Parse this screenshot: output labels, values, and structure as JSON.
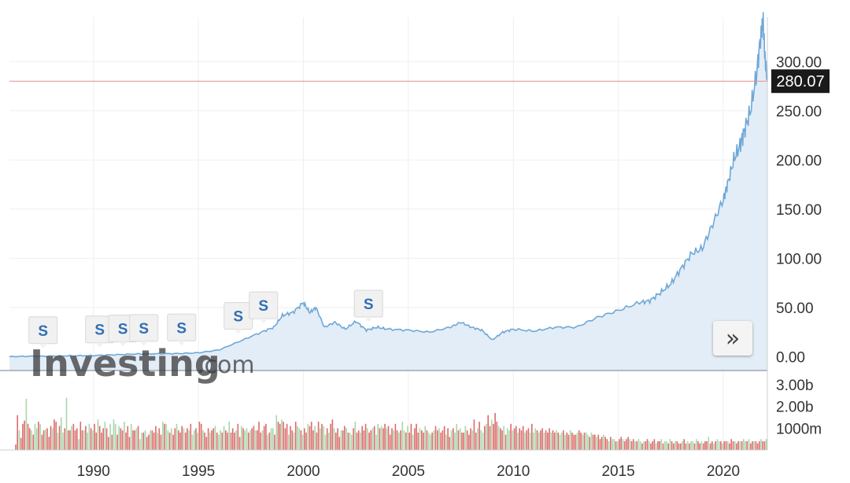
{
  "chart_data": {
    "type": "area",
    "x_ticks": [
      "1990",
      "1995",
      "2000",
      "2005",
      "2010",
      "2015",
      "2020"
    ],
    "y_ticks": [
      "0.00",
      "50.00",
      "100.00",
      "150.00",
      "200.00",
      "250.00",
      "300.00"
    ],
    "volume_ticks": [
      "1000m",
      "2.00b",
      "3.00b"
    ],
    "ylim": [
      -14,
      345
    ],
    "xlim": [
      1986.0,
      2022.1
    ],
    "current_price": 280.07,
    "current_price_label": "280.07",
    "series": [
      {
        "x": [
          1986.0,
          1987.0,
          1988.0,
          1989.0,
          1990.0,
          1991.0,
          1992.0,
          1993.0,
          1994.0,
          1995.0,
          1996.0,
          1997.0,
          1998.0,
          1998.6,
          1999.0,
          1999.5,
          2000.0,
          2000.3,
          2000.6,
          2001.0,
          2001.5,
          2002.0,
          2002.5,
          2003.0,
          2003.5,
          2004.0,
          2005.0,
          2006.0,
          2007.0,
          2007.5,
          2008.0,
          2008.5,
          2009.0,
          2009.5,
          2010.0,
          2011.0,
          2012.0,
          2013.0,
          2014.0,
          2015.0,
          2016.0,
          2016.5,
          2017.0,
          2017.5,
          2018.0,
          2018.5,
          2019.0,
          2019.5,
          2020.0,
          2020.2,
          2020.5,
          2020.8,
          2021.0,
          2021.3,
          2021.6,
          2021.8,
          2021.9,
          2022.0,
          2022.1
        ],
        "values": [
          0.06,
          0.5,
          0.6,
          1.0,
          1.2,
          2.0,
          2.8,
          3.0,
          3.2,
          4.0,
          7.0,
          16.0,
          25.0,
          30.0,
          42.0,
          45.0,
          55.0,
          45.0,
          50.0,
          30.0,
          35.0,
          28.0,
          36.0,
          27.0,
          30.0,
          28.0,
          27.0,
          25.0,
          30.0,
          35.0,
          30.0,
          27.0,
          17.0,
          25.0,
          28.0,
          26.0,
          30.0,
          30.0,
          40.0,
          47.0,
          55.0,
          57.0,
          65.0,
          74.0,
          90.0,
          105.0,
          110.0,
          135.0,
          160.0,
          175.0,
          200.0,
          215.0,
          230.0,
          250.0,
          290.0,
          330.0,
          340.0,
          300.0,
          280.07
        ]
      }
    ],
    "volume": {
      "bars_per_year": 12,
      "values_b": [
        0.25,
        1.6,
        0.9,
        0.55,
        1.2,
        1.35,
        2.35,
        1.2,
        1.0,
        0.9,
        0.7,
        1.2,
        1.0,
        1.3,
        1.2,
        0.7,
        0.9,
        0.95,
        1.0,
        0.6,
        1.1,
        1.0,
        1.4,
        1.3,
        0.8,
        1.1,
        1.5,
        0.8,
        1.0,
        2.4,
        0.9,
        0.9,
        1.1,
        1.2,
        0.9,
        1.0,
        0.5,
        1.3,
        0.9,
        0.9,
        1.1,
        0.8,
        1.2,
        1.0,
        0.9,
        1.2,
        0.8,
        1.4,
        1.1,
        0.8,
        1.0,
        1.3,
        1.0,
        0.6,
        1.2,
        0.7,
        1.4,
        1.2,
        0.7,
        1.1,
        1.0,
        0.9,
        1.3,
        0.8,
        1.1,
        0.6,
        1.2,
        0.9,
        0.9,
        1.0,
        1.1,
        0.5,
        0.8,
        0.8,
        0.9,
        0.6,
        0.7,
        0.9,
        0.9,
        0.8,
        1.1,
        0.8,
        1.0,
        0.7,
        1.3,
        1.2,
        1.2,
        0.9,
        0.8,
        1.0,
        0.7,
        1.0,
        1.2,
        0.9,
        0.8,
        1.1,
        1.0,
        0.8,
        1.0,
        0.9,
        1.2,
        0.7,
        0.9,
        1.0,
        0.8,
        1.3,
        1.2,
        0.9,
        0.8,
        0.6,
        1.0,
        0.8,
        0.9,
        1.0,
        1.1,
        0.8,
        0.7,
        0.9,
        0.8,
        1.1,
        0.9,
        0.8,
        1.3,
        0.8,
        1.0,
        0.8,
        0.9,
        1.2,
        0.6,
        1.1,
        1.0,
        0.9,
        1.0,
        0.8,
        0.9,
        1.0,
        1.1,
        0.9,
        0.9,
        1.3,
        0.8,
        0.9,
        1.1,
        1.2,
        0.7,
        0.8,
        1.0,
        1.0,
        0.7,
        1.6,
        1.3,
        1.2,
        1.4,
        1.3,
        1.0,
        1.2,
        0.7,
        1.1,
        0.9,
        0.8,
        1.3,
        1.1,
        1.0,
        0.9,
        0.7,
        1.0,
        0.8,
        1.2,
        1.1,
        1.3,
        0.9,
        1.1,
        0.8,
        1.3,
        1.0,
        1.2,
        1.1,
        0.7,
        1.0,
        0.8,
        1.2,
        1.4,
        1.0,
        0.8,
        1.0,
        0.6,
        0.9,
        0.9,
        1.1,
        1.0,
        0.8,
        0.8,
        0.7,
        1.0,
        1.3,
        0.8,
        0.9,
        0.8,
        1.1,
        0.9,
        1.2,
        1.0,
        0.8,
        0.9,
        1.0,
        1.1,
        0.7,
        1.2,
        1.0,
        1.1,
        1.0,
        1.2,
        1.0,
        1.1,
        0.7,
        1.0,
        0.9,
        1.2,
        0.9,
        0.8,
        0.9,
        1.3,
        0.9,
        0.8,
        1.1,
        0.8,
        1.2,
        0.7,
        1.0,
        1.2,
        0.8,
        1.0,
        0.9,
        0.8,
        1.1,
        0.9,
        0.8,
        0.7,
        0.8,
        0.9,
        1.1,
        0.9,
        1.0,
        0.8,
        0.9,
        1.1,
        0.7,
        1.0,
        0.6,
        0.9,
        1.0,
        0.8,
        1.2,
        0.9,
        1.0,
        0.8,
        0.8,
        1.1,
        0.9,
        0.7,
        1.0,
        0.9,
        1.4,
        0.8,
        1.0,
        1.3,
        0.9,
        0.8,
        1.1,
        1.2,
        1.6,
        1.1,
        1.4,
        1.2,
        1.7,
        1.3,
        1.1,
        1.0,
        0.9,
        1.1,
        0.7,
        1.0,
        0.9,
        1.2,
        0.9,
        1.0,
        1.1,
        0.8,
        1.0,
        0.9,
        1.1,
        0.8,
        0.9,
        1.0,
        0.8,
        1.2,
        0.8,
        1.0,
        0.9,
        0.8,
        0.9,
        1.0,
        0.8,
        0.9,
        0.8,
        1.0,
        0.8,
        0.9,
        0.8,
        0.9,
        0.8,
        0.7,
        0.8,
        0.9,
        0.7,
        0.8,
        0.7,
        0.9,
        0.8,
        0.7,
        0.7,
        0.8,
        0.9,
        0.8,
        0.7,
        0.8,
        0.8,
        0.7,
        0.6,
        0.8,
        0.7,
        0.7,
        0.6,
        0.7,
        0.5,
        0.6,
        0.7,
        0.6,
        0.5,
        0.4,
        0.6,
        0.5,
        0.5,
        0.4,
        0.4,
        0.5,
        0.6,
        0.5,
        0.4,
        0.5,
        0.6,
        0.5,
        0.4,
        0.5,
        0.4,
        0.4,
        0.5,
        0.4,
        0.3,
        0.4,
        0.4,
        0.5,
        0.4,
        0.3,
        0.4,
        0.5,
        0.3,
        0.4,
        0.4,
        0.5,
        0.3,
        0.4,
        0.4,
        0.3,
        0.5,
        0.4,
        0.3,
        0.4,
        0.4,
        0.3,
        0.3,
        0.4,
        0.5,
        0.3,
        0.4,
        0.3,
        0.4,
        0.4,
        0.3,
        0.5,
        0.4,
        0.3,
        0.4,
        0.3,
        0.4,
        0.4,
        0.6,
        0.3,
        0.4,
        0.3,
        0.4,
        0.5,
        0.4,
        0.4,
        0.3,
        0.4,
        0.4,
        0.4,
        0.3,
        0.5,
        0.4,
        0.4,
        0.3,
        0.4,
        0.4,
        0.4,
        0.5,
        0.4,
        0.4,
        0.5,
        0.3,
        0.4,
        0.4,
        0.4,
        0.3,
        0.4,
        0.5,
        0.4,
        0.4,
        0.5,
        0.6,
        0.4,
        0.3,
        0.4,
        0.4,
        1.0,
        0.4,
        0.5,
        0.4,
        0.5,
        0.4,
        0.4,
        0.5,
        0.4,
        0.3,
        0.4,
        0.4,
        0.5,
        0.4,
        0.3,
        0.4,
        0.5,
        0.4,
        0.8
      ]
    },
    "grid": true,
    "legend": "none"
  },
  "event_markers": [
    {
      "label": "S",
      "year": 1987.6
    },
    {
      "label": "S",
      "year": 1990.3
    },
    {
      "label": "S",
      "year": 1991.4
    },
    {
      "label": "S",
      "year": 1992.4
    },
    {
      "label": "S",
      "year": 1994.2
    },
    {
      "label": "S",
      "year": 1996.9
    },
    {
      "label": "S",
      "year": 1998.1
    },
    {
      "label": "S",
      "year": 2003.1
    }
  ],
  "watermark": {
    "brand": "Investing",
    "suffix": ".com"
  },
  "colors": {
    "line": "#6fa8d6",
    "area_fill": "#e3edf7",
    "price_line": "#e88b8b",
    "price_label_bg": "#1a1a1a",
    "volume_up": "#a8d6ab",
    "volume_down": "#dd6a6a",
    "grid": "#efefef"
  },
  "scroll_button": {
    "icon": "double-chevron-right-icon",
    "glyph": "»"
  }
}
